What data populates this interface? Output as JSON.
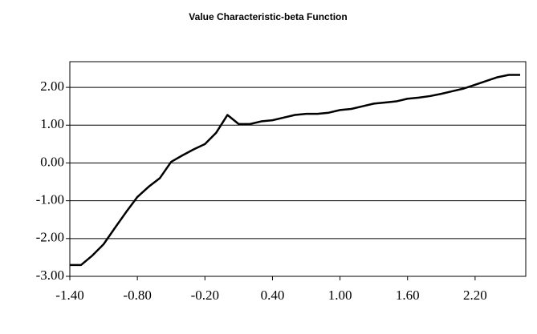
{
  "chart_data": {
    "type": "line",
    "title": "Value Characteristic-beta Function",
    "x": [
      -1.4,
      -1.3,
      -1.2,
      -1.1,
      -1.0,
      -0.9,
      -0.8,
      -0.7,
      -0.6,
      -0.5,
      -0.4,
      -0.3,
      -0.2,
      -0.1,
      0.0,
      0.1,
      0.2,
      0.3,
      0.4,
      0.5,
      0.6,
      0.7,
      0.8,
      0.9,
      1.0,
      1.1,
      1.2,
      1.3,
      1.4,
      1.5,
      1.6,
      1.7,
      1.8,
      1.9,
      2.0,
      2.1,
      2.2,
      2.3,
      2.4,
      2.5,
      2.6
    ],
    "series": [
      {
        "color": "#000000",
        "values": [
          -2.7,
          -2.7,
          -2.45,
          -2.15,
          -1.72,
          -1.3,
          -0.9,
          -0.63,
          -0.4,
          0.03,
          0.2,
          0.36,
          0.5,
          0.8,
          1.27,
          1.03,
          1.03,
          1.1,
          1.13,
          1.2,
          1.27,
          1.3,
          1.3,
          1.33,
          1.4,
          1.43,
          1.5,
          1.57,
          1.6,
          1.63,
          1.7,
          1.73,
          1.77,
          1.83,
          1.9,
          1.97,
          2.07,
          2.17,
          2.27,
          2.33,
          2.33
        ]
      }
    ],
    "xlim": [
      -1.4,
      2.65
    ],
    "xticks": [
      {
        "value": -1.4,
        "label": "-1.40"
      },
      {
        "value": -0.8,
        "label": "-0.80"
      },
      {
        "value": -0.2,
        "label": "-0.20"
      },
      {
        "value": 0.4,
        "label": "0.40"
      },
      {
        "value": 1.0,
        "label": "1.00"
      },
      {
        "value": 1.6,
        "label": "1.60"
      },
      {
        "value": 2.2,
        "label": "2.20"
      }
    ],
    "ylim": [
      -3,
      2.68
    ],
    "yticks": [
      {
        "value": -3,
        "label": "-3.00"
      },
      {
        "value": -2,
        "label": "-2.00"
      },
      {
        "value": -1,
        "label": "-1.00"
      },
      {
        "value": 0,
        "label": "0.00"
      },
      {
        "value": 1,
        "label": "1.00"
      },
      {
        "value": 2,
        "label": "2.00"
      }
    ],
    "grid": true
  }
}
